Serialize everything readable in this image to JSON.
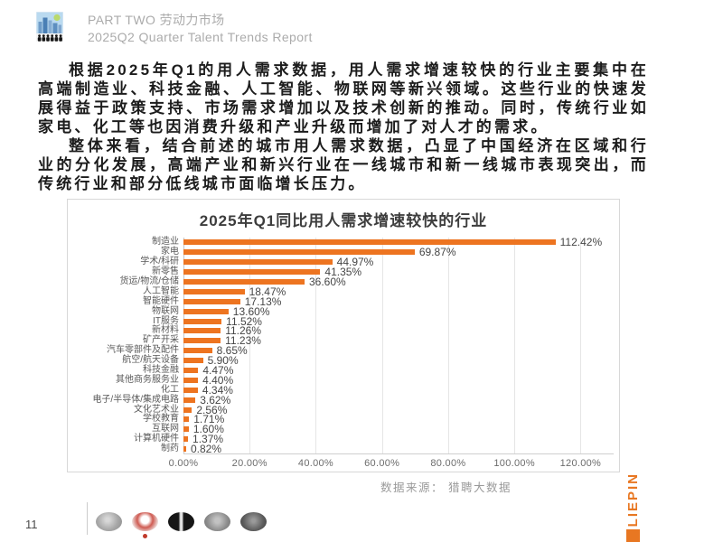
{
  "header": {
    "part_label": "PART TWO 劳动力市场",
    "report_label": "2025Q2 Quarter Talent Trends Report"
  },
  "body": {
    "paragraph1": "根据2025年Q1的用人需求数据，用人需求增速较快的行业主要集中在高端制造业、科技金融、人工智能、物联网等新兴领域。这些行业的快速发展得益于政策支持、市场需求增加以及技术创新的推动。同时，传统行业如家电、化工等也因消费升级和产业升级而增加了对人才的需求。",
    "paragraph2": "整体来看，结合前述的城市用人需求数据，凸显了中国经济在区域和行业的分化发展，高端产业和新兴行业在一线城市和新一线城市表现突出，而传统行业和部分低线城市面临增长压力。"
  },
  "chart_data": {
    "type": "bar",
    "orientation": "horizontal",
    "title": "2025年Q1同比用人需求增速较快的行业",
    "categories": [
      "制造业",
      "家电",
      "学术/科研",
      "新零售",
      "货运/物流/仓储",
      "人工智能",
      "智能硬件",
      "物联网",
      "IT服务",
      "新材料",
      "矿产开采",
      "汽车零部件及配件",
      "航空/航天设备",
      "科技金融",
      "其他商务服务业",
      "化工",
      "电子/半导体/集成电路",
      "文化艺术业",
      "学校教育",
      "互联网",
      "计算机硬件",
      "制药"
    ],
    "values": [
      112.42,
      69.87,
      44.97,
      41.35,
      36.6,
      18.47,
      17.13,
      13.6,
      11.52,
      11.26,
      11.23,
      8.65,
      5.9,
      4.47,
      4.4,
      4.34,
      3.62,
      2.56,
      1.71,
      1.6,
      1.37,
      0.82
    ],
    "value_labels": [
      "112.42%",
      "69.87%",
      "44.97%",
      "41.35%",
      "36.60%",
      "18.47%",
      "17.13%",
      "13.60%",
      "11.52%",
      "11.26%",
      "11.23%",
      "8.65%",
      "5.90%",
      "4.47%",
      "4.40%",
      "4.34%",
      "3.62%",
      "2.56%",
      "1.71%",
      "1.60%",
      "1.37%",
      "0.82%"
    ],
    "x_ticks": [
      "0.00%",
      "20.00%",
      "40.00%",
      "60.00%",
      "80.00%",
      "100.00%",
      "120.00%"
    ],
    "xlim": [
      0,
      120
    ],
    "grid": true,
    "bar_color": "#ed7420",
    "source": "数据来源： 猎聘大数据"
  },
  "footer": {
    "page_number": "11",
    "logos": [
      "footer-logo-1",
      "footer-logo-2",
      "footer-logo-3",
      "footer-logo-4",
      "footer-logo-5"
    ]
  },
  "brand": {
    "name": "LIEPIN",
    "color": "#e87722"
  }
}
